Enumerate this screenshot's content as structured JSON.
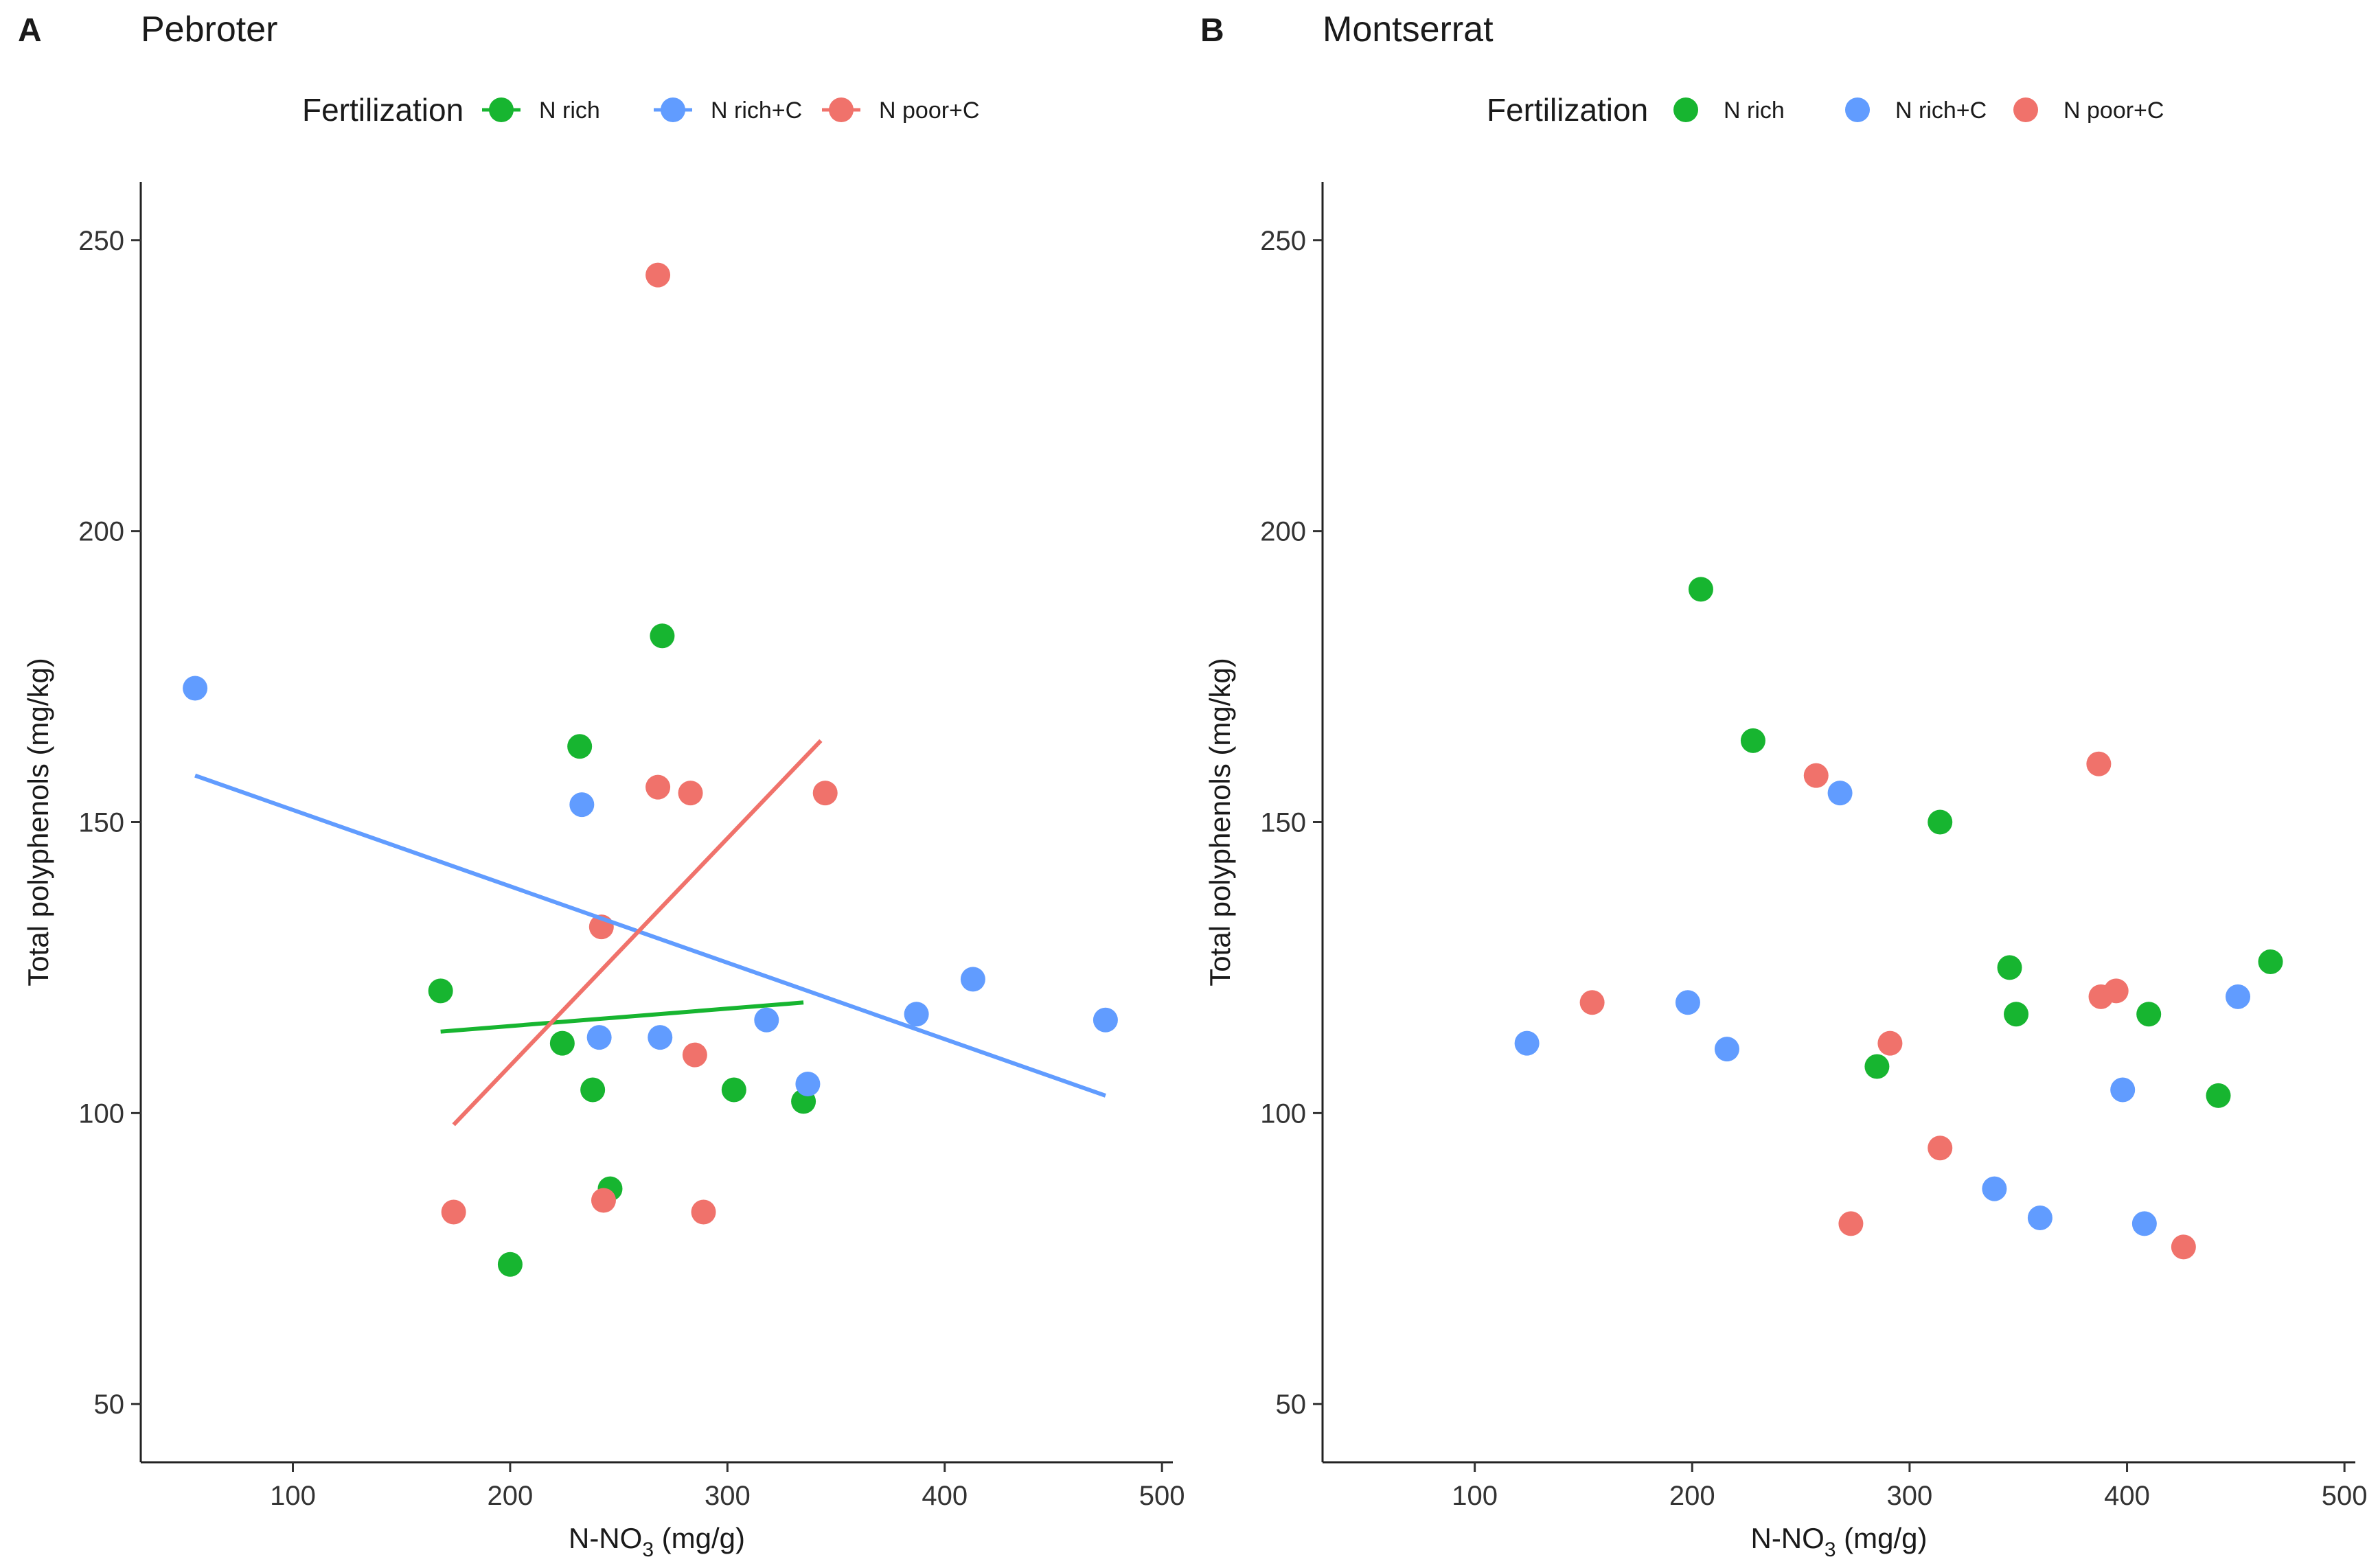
{
  "colors": {
    "N rich": "#17b530",
    "N rich+C": "#619cff",
    "N poor+C": "#f0726b"
  },
  "chart_data": [
    {
      "type": "scatter",
      "panel": "A",
      "title": "Pebroter",
      "legend": {
        "title": "Fertilization",
        "position": "top",
        "entries": [
          "N rich",
          "N rich+C",
          "N poor+C"
        ]
      },
      "xlabel": "N-NO",
      "xlabel_sub": "3",
      "xlabel_unit": " (mg/g)",
      "ylabel": "Total polyphenols (mg/kg)",
      "xlim": [
        30,
        505
      ],
      "ylim": [
        40,
        260
      ],
      "xticks": [
        100,
        200,
        300,
        400,
        500
      ],
      "yticks": [
        50,
        100,
        150,
        200,
        250
      ],
      "series": [
        {
          "name": "N rich",
          "points": [
            [
              168,
              121
            ],
            [
              200,
              74
            ],
            [
              224,
              112
            ],
            [
              232,
              163
            ],
            [
              238,
              104
            ],
            [
              246,
              87
            ],
            [
              270,
              182
            ],
            [
              303,
              104
            ],
            [
              335,
              102
            ]
          ],
          "fit": [
            [
              168,
              114
            ],
            [
              335,
              119
            ]
          ]
        },
        {
          "name": "N rich+C",
          "points": [
            [
              55,
              173
            ],
            [
              233,
              153
            ],
            [
              241,
              113
            ],
            [
              269,
              113
            ],
            [
              318,
              116
            ],
            [
              337,
              105
            ],
            [
              387,
              117
            ],
            [
              413,
              123
            ],
            [
              474,
              116
            ]
          ],
          "fit": [
            [
              55,
              158
            ],
            [
              474,
              103
            ]
          ]
        },
        {
          "name": "N poor+C",
          "points": [
            [
              174,
              83
            ],
            [
              242,
              132
            ],
            [
              243,
              85
            ],
            [
              268,
              244
            ],
            [
              268,
              156
            ],
            [
              283,
              155
            ],
            [
              285,
              110
            ],
            [
              289,
              83
            ],
            [
              345,
              155
            ]
          ],
          "fit": [
            [
              174,
              98
            ],
            [
              343,
              164
            ]
          ]
        }
      ]
    },
    {
      "type": "scatter",
      "panel": "B",
      "title": "Montserrat",
      "legend": {
        "title": "Fertilization",
        "position": "top",
        "entries": [
          "N rich",
          "N rich+C",
          "N poor+C"
        ]
      },
      "xlabel": "N-NO",
      "xlabel_sub": "3",
      "xlabel_unit": " (mg/g)",
      "ylabel": "Total polyphenols (mg/kg)",
      "xlim": [
        30,
        505
      ],
      "ylim": [
        40,
        260
      ],
      "xticks": [
        100,
        200,
        300,
        400,
        500
      ],
      "yticks": [
        50,
        100,
        150,
        200,
        250
      ],
      "series": [
        {
          "name": "N rich",
          "points": [
            [
              204,
              190
            ],
            [
              228,
              164
            ],
            [
              285,
              108
            ],
            [
              314,
              150
            ],
            [
              346,
              125
            ],
            [
              349,
              117
            ],
            [
              410,
              117
            ],
            [
              442,
              103
            ],
            [
              466,
              126
            ]
          ]
        },
        {
          "name": "N rich+C",
          "points": [
            [
              124,
              112
            ],
            [
              198,
              119
            ],
            [
              216,
              111
            ],
            [
              268,
              155
            ],
            [
              339,
              87
            ],
            [
              360,
              82
            ],
            [
              398,
              104
            ],
            [
              408,
              81
            ],
            [
              451,
              120
            ]
          ]
        },
        {
          "name": "N poor+C",
          "points": [
            [
              154,
              119
            ],
            [
              257,
              158
            ],
            [
              273,
              81
            ],
            [
              291,
              112
            ],
            [
              314,
              94
            ],
            [
              387,
              160
            ],
            [
              388,
              120
            ],
            [
              395,
              121
            ],
            [
              426,
              77
            ]
          ]
        }
      ]
    }
  ]
}
